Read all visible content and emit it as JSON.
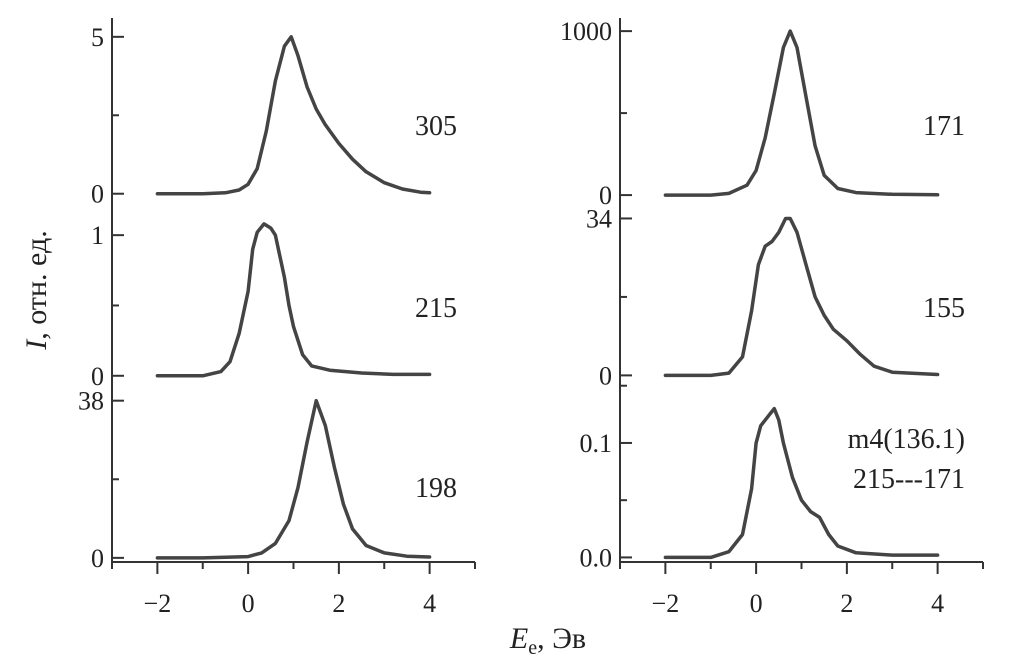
{
  "chart_data": [
    {
      "type": "line",
      "column": "left",
      "row": 0,
      "label": "305",
      "x": [
        -2,
        -1.5,
        -1,
        -0.5,
        -0.2,
        0,
        0.2,
        0.4,
        0.6,
        0.8,
        0.95,
        1.1,
        1.3,
        1.5,
        1.7,
        2.0,
        2.3,
        2.6,
        3.0,
        3.4,
        3.8,
        4.0
      ],
      "y": [
        0,
        0,
        0,
        0.03,
        0.12,
        0.3,
        0.8,
        2.0,
        3.6,
        4.7,
        5.0,
        4.4,
        3.4,
        2.7,
        2.2,
        1.6,
        1.1,
        0.7,
        0.35,
        0.15,
        0.05,
        0.03
      ],
      "ylim": [
        -0.2,
        5.6
      ],
      "yticks": [
        0,
        5
      ],
      "ytick_labels": [
        "0",
        "5"
      ]
    },
    {
      "type": "line",
      "column": "left",
      "row": 1,
      "label": "215",
      "x": [
        -2,
        -1.5,
        -1,
        -0.6,
        -0.4,
        -0.2,
        0,
        0.1,
        0.2,
        0.35,
        0.5,
        0.6,
        0.7,
        0.8,
        0.9,
        1.0,
        1.2,
        1.4,
        1.8,
        2.5,
        3.2,
        4.0
      ],
      "y": [
        0,
        0,
        0,
        0.03,
        0.1,
        0.3,
        0.6,
        0.9,
        1.02,
        1.08,
        1.05,
        1.0,
        0.85,
        0.7,
        0.5,
        0.35,
        0.15,
        0.07,
        0.04,
        0.02,
        0.01,
        0.01
      ],
      "ylim": [
        -0.03,
        1.25
      ],
      "yticks": [
        0,
        1
      ],
      "ytick_labels": [
        "0",
        "1"
      ]
    },
    {
      "type": "line",
      "column": "left",
      "row": 2,
      "label": "198",
      "x": [
        -2,
        -1,
        0,
        0.3,
        0.6,
        0.9,
        1.1,
        1.3,
        1.5,
        1.7,
        1.9,
        2.1,
        2.3,
        2.6,
        3.0,
        3.5,
        4.0
      ],
      "y": [
        0,
        0,
        0.3,
        1.2,
        3.5,
        9,
        17,
        28,
        38,
        32,
        22,
        13,
        7,
        3,
        1.2,
        0.4,
        0.2
      ],
      "ylim": [
        -1,
        43
      ],
      "yticks": [
        0,
        38
      ],
      "ytick_labels": [
        "0",
        "38"
      ]
    },
    {
      "type": "line",
      "column": "right",
      "row": 0,
      "label": "171",
      "x": [
        -2,
        -1,
        -0.6,
        -0.2,
        0,
        0.2,
        0.4,
        0.6,
        0.75,
        0.9,
        1.1,
        1.3,
        1.5,
        1.8,
        2.2,
        3.0,
        4.0
      ],
      "y": [
        0,
        0,
        10,
        60,
        150,
        350,
        620,
        900,
        1000,
        900,
        600,
        300,
        120,
        40,
        15,
        5,
        2
      ],
      "ylim": [
        -30,
        1080
      ],
      "yticks": [
        0,
        1000
      ],
      "ytick_labels": [
        "0",
        "1000"
      ]
    },
    {
      "type": "line",
      "column": "right",
      "row": 1,
      "label": "155",
      "x": [
        -2,
        -1,
        -0.6,
        -0.3,
        -0.1,
        0.05,
        0.2,
        0.35,
        0.5,
        0.65,
        0.75,
        0.9,
        1.1,
        1.3,
        1.5,
        1.7,
        2.0,
        2.3,
        2.6,
        3.0,
        4.0
      ],
      "y": [
        0,
        0,
        0.5,
        4,
        14,
        24,
        28,
        29,
        31,
        34,
        34,
        31,
        24,
        17,
        13,
        10,
        7.5,
        4.5,
        2,
        0.7,
        0.2
      ],
      "ylim": [
        -1,
        38
      ],
      "yticks": [
        0,
        34
      ],
      "ytick_labels": [
        "0",
        "34"
      ]
    },
    {
      "type": "line",
      "column": "right",
      "row": 2,
      "label": "m4(136.1)\n215---171",
      "label_lines": [
        "m4(136.1)",
        "215---171"
      ],
      "x": [
        -2,
        -1,
        -0.6,
        -0.3,
        -0.1,
        0,
        0.1,
        0.2,
        0.3,
        0.4,
        0.5,
        0.6,
        0.8,
        1.0,
        1.2,
        1.4,
        1.6,
        1.8,
        2.2,
        3.0,
        4.0
      ],
      "y": [
        0,
        0,
        0.005,
        0.02,
        0.06,
        0.1,
        0.115,
        0.12,
        0.125,
        0.13,
        0.12,
        0.1,
        0.07,
        0.05,
        0.04,
        0.035,
        0.02,
        0.01,
        0.004,
        0.002,
        0.002
      ],
      "ylim": [
        -0.004,
        0.155
      ],
      "yticks": [
        0,
        0.1
      ],
      "ytick_labels": [
        "0.0",
        "0.1"
      ]
    }
  ],
  "xaxis": {
    "xlim": [
      -3,
      5
    ],
    "xticks": [
      -2,
      0,
      2,
      4
    ],
    "xtick_labels": [
      "−2",
      "0",
      "2",
      "4"
    ]
  },
  "ylabel": {
    "main": "I",
    "rest": ", отн. ед."
  },
  "xlabel": {
    "main": "E",
    "sub": "e",
    "rest": ", Эв"
  }
}
